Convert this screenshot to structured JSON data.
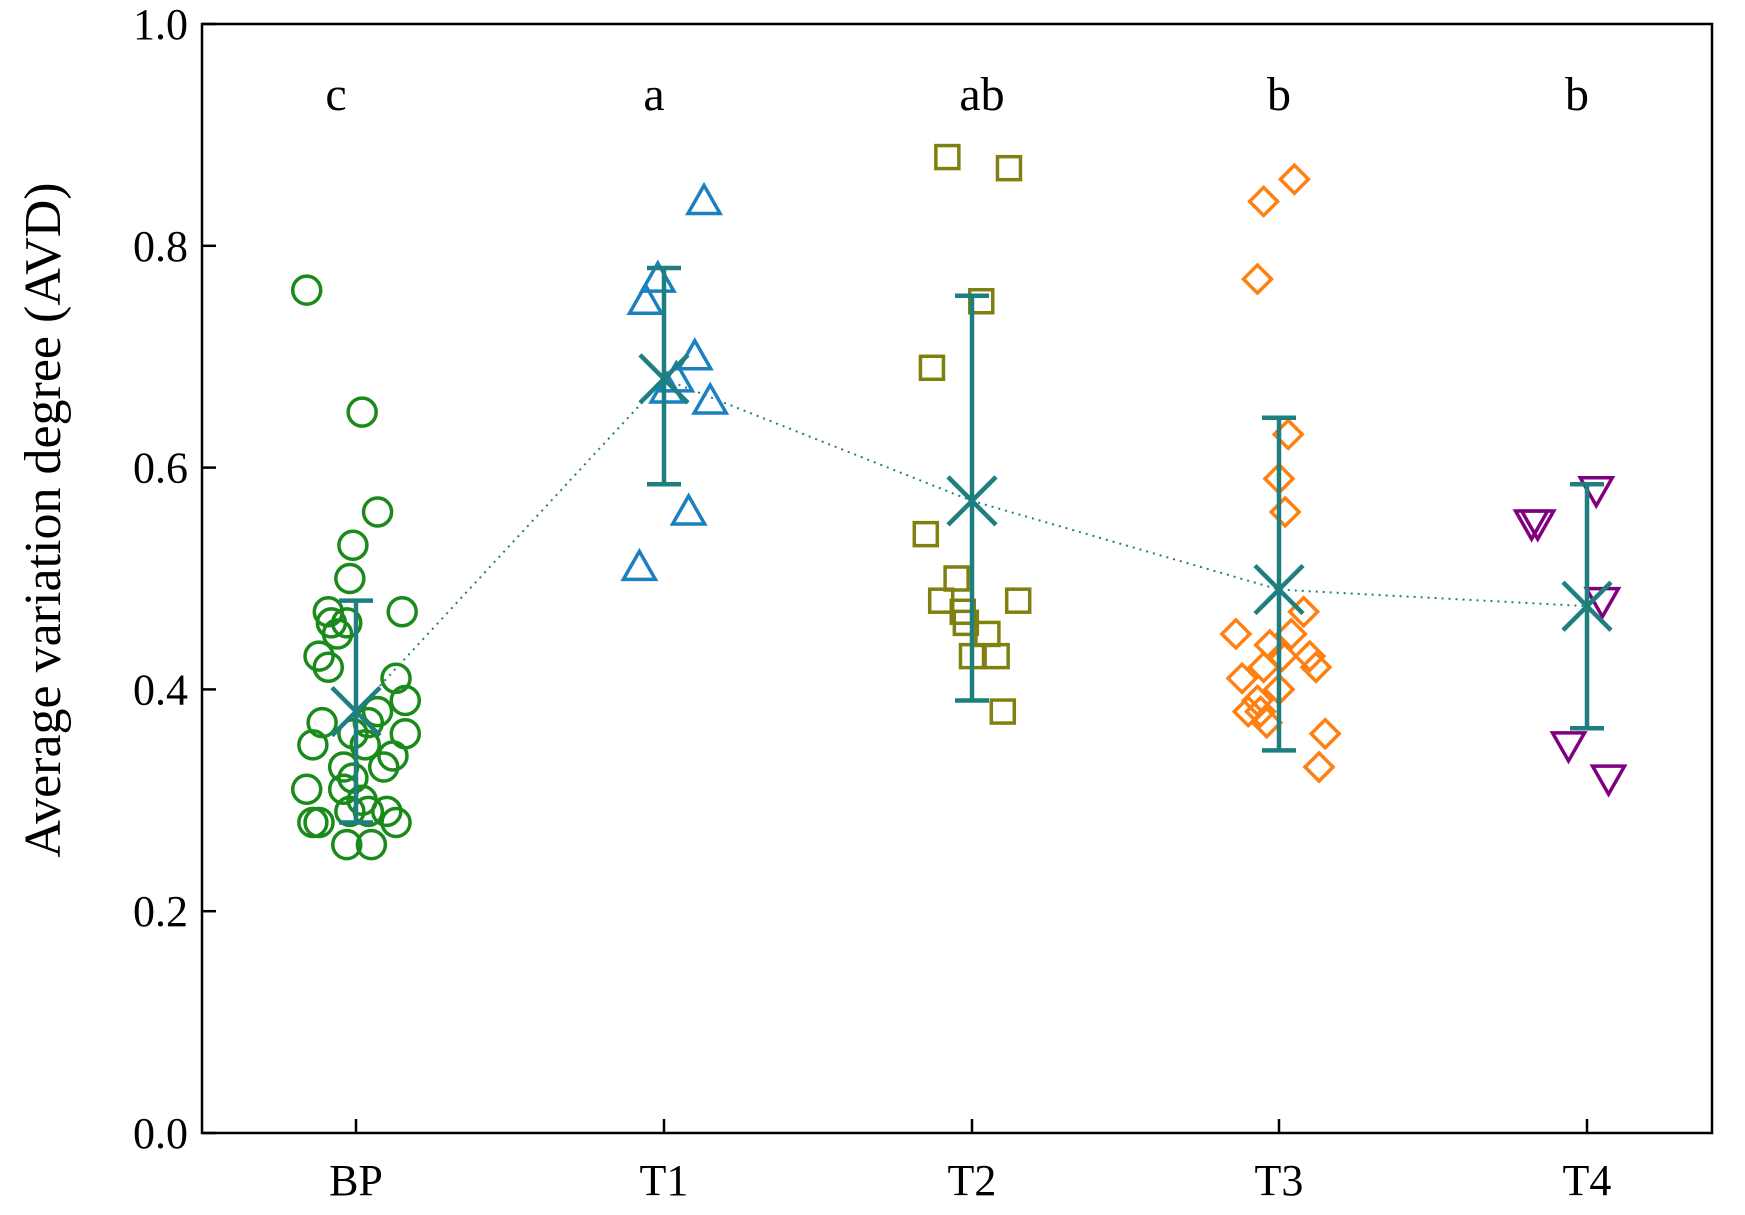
{
  "chart_data": {
    "type": "scatter",
    "title": "",
    "xlabel": "",
    "ylabel": "Average variation degree (AVD)",
    "ylim": [
      0.0,
      1.0
    ],
    "yticks": [
      "0.0",
      "0.2",
      "0.4",
      "0.6",
      "0.8",
      "1.0"
    ],
    "yticks_values": [
      0.0,
      0.2,
      0.4,
      0.6,
      0.8,
      1.0
    ],
    "categories": [
      "BP",
      "T1",
      "T2",
      "T3",
      "T4"
    ],
    "grid": false,
    "legend": "none",
    "mean_line_color": "#1f7f7f",
    "groups": [
      {
        "name": "BP",
        "marker": "circle",
        "color": "#1a8a1a",
        "letter": "c",
        "mean": 0.38,
        "err_low": 0.28,
        "err_high": 0.48,
        "points": [
          {
            "dx": -0.16,
            "y": 0.76
          },
          {
            "dx": 0.02,
            "y": 0.65
          },
          {
            "dx": 0.07,
            "y": 0.56
          },
          {
            "dx": -0.01,
            "y": 0.53
          },
          {
            "dx": -0.02,
            "y": 0.5
          },
          {
            "dx": -0.09,
            "y": 0.47
          },
          {
            "dx": 0.15,
            "y": 0.47
          },
          {
            "dx": -0.08,
            "y": 0.46
          },
          {
            "dx": -0.03,
            "y": 0.46
          },
          {
            "dx": -0.06,
            "y": 0.45
          },
          {
            "dx": -0.12,
            "y": 0.43
          },
          {
            "dx": -0.09,
            "y": 0.42
          },
          {
            "dx": 0.13,
            "y": 0.41
          },
          {
            "dx": 0.16,
            "y": 0.39
          },
          {
            "dx": 0.07,
            "y": 0.38
          },
          {
            "dx": -0.11,
            "y": 0.37
          },
          {
            "dx": 0.04,
            "y": 0.37
          },
          {
            "dx": -0.01,
            "y": 0.36
          },
          {
            "dx": 0.16,
            "y": 0.36
          },
          {
            "dx": -0.14,
            "y": 0.35
          },
          {
            "dx": 0.03,
            "y": 0.35
          },
          {
            "dx": 0.12,
            "y": 0.34
          },
          {
            "dx": -0.04,
            "y": 0.33
          },
          {
            "dx": 0.09,
            "y": 0.33
          },
          {
            "dx": -0.01,
            "y": 0.32
          },
          {
            "dx": -0.16,
            "y": 0.31
          },
          {
            "dx": -0.04,
            "y": 0.31
          },
          {
            "dx": 0.02,
            "y": 0.3
          },
          {
            "dx": -0.02,
            "y": 0.29
          },
          {
            "dx": 0.1,
            "y": 0.29
          },
          {
            "dx": 0.04,
            "y": 0.29
          },
          {
            "dx": -0.14,
            "y": 0.28
          },
          {
            "dx": -0.12,
            "y": 0.28
          },
          {
            "dx": 0.13,
            "y": 0.28
          },
          {
            "dx": -0.03,
            "y": 0.26
          },
          {
            "dx": 0.05,
            "y": 0.26
          }
        ]
      },
      {
        "name": "T1",
        "marker": "triangle-up",
        "color": "#1a80c0",
        "letter": "a",
        "mean": 0.68,
        "err_low": 0.585,
        "err_high": 0.78,
        "points": [
          {
            "dx": 0.13,
            "y": 0.84
          },
          {
            "dx": -0.02,
            "y": 0.77
          },
          {
            "dx": -0.06,
            "y": 0.75
          },
          {
            "dx": 0.1,
            "y": 0.7
          },
          {
            "dx": 0.04,
            "y": 0.68
          },
          {
            "dx": 0.01,
            "y": 0.67
          },
          {
            "dx": 0.15,
            "y": 0.66
          },
          {
            "dx": 0.08,
            "y": 0.56
          },
          {
            "dx": -0.08,
            "y": 0.51
          }
        ]
      },
      {
        "name": "T2",
        "marker": "square",
        "color": "#808010",
        "letter": "ab",
        "mean": 0.57,
        "err_low": 0.39,
        "err_high": 0.755,
        "points": [
          {
            "dx": -0.08,
            "y": 0.88
          },
          {
            "dx": 0.12,
            "y": 0.87
          },
          {
            "dx": 0.03,
            "y": 0.75
          },
          {
            "dx": -0.13,
            "y": 0.69
          },
          {
            "dx": -0.15,
            "y": 0.54
          },
          {
            "dx": -0.05,
            "y": 0.5
          },
          {
            "dx": -0.1,
            "y": 0.48
          },
          {
            "dx": 0.15,
            "y": 0.48
          },
          {
            "dx": -0.03,
            "y": 0.47
          },
          {
            "dx": -0.02,
            "y": 0.46
          },
          {
            "dx": 0.05,
            "y": 0.45
          },
          {
            "dx": 0.0,
            "y": 0.43
          },
          {
            "dx": 0.08,
            "y": 0.43
          },
          {
            "dx": 0.1,
            "y": 0.38
          }
        ]
      },
      {
        "name": "T3",
        "marker": "diamond",
        "color": "#ff8010",
        "letter": "b",
        "mean": 0.49,
        "err_low": 0.345,
        "err_high": 0.645,
        "points": [
          {
            "dx": 0.05,
            "y": 0.86
          },
          {
            "dx": -0.05,
            "y": 0.84
          },
          {
            "dx": -0.07,
            "y": 0.77
          },
          {
            "dx": 0.03,
            "y": 0.63
          },
          {
            "dx": 0.0,
            "y": 0.59
          },
          {
            "dx": 0.02,
            "y": 0.56
          },
          {
            "dx": 0.08,
            "y": 0.47
          },
          {
            "dx": -0.14,
            "y": 0.45
          },
          {
            "dx": 0.04,
            "y": 0.45
          },
          {
            "dx": -0.03,
            "y": 0.44
          },
          {
            "dx": 0.01,
            "y": 0.43
          },
          {
            "dx": 0.1,
            "y": 0.43
          },
          {
            "dx": -0.05,
            "y": 0.42
          },
          {
            "dx": 0.12,
            "y": 0.42
          },
          {
            "dx": 0.0,
            "y": 0.4
          },
          {
            "dx": -0.12,
            "y": 0.41
          },
          {
            "dx": -0.07,
            "y": 0.39
          },
          {
            "dx": -0.06,
            "y": 0.38
          },
          {
            "dx": -0.1,
            "y": 0.38
          },
          {
            "dx": -0.04,
            "y": 0.37
          },
          {
            "dx": 0.15,
            "y": 0.36
          },
          {
            "dx": 0.13,
            "y": 0.33
          }
        ]
      },
      {
        "name": "T4",
        "marker": "triangle-down",
        "color": "#800080",
        "letter": "b",
        "mean": 0.475,
        "err_low": 0.365,
        "err_high": 0.585,
        "points": [
          {
            "dx": 0.03,
            "y": 0.58
          },
          {
            "dx": -0.16,
            "y": 0.55
          },
          {
            "dx": -0.18,
            "y": 0.55
          },
          {
            "dx": 0.05,
            "y": 0.48
          },
          {
            "dx": -0.06,
            "y": 0.35
          },
          {
            "dx": 0.07,
            "y": 0.32
          }
        ]
      }
    ]
  }
}
